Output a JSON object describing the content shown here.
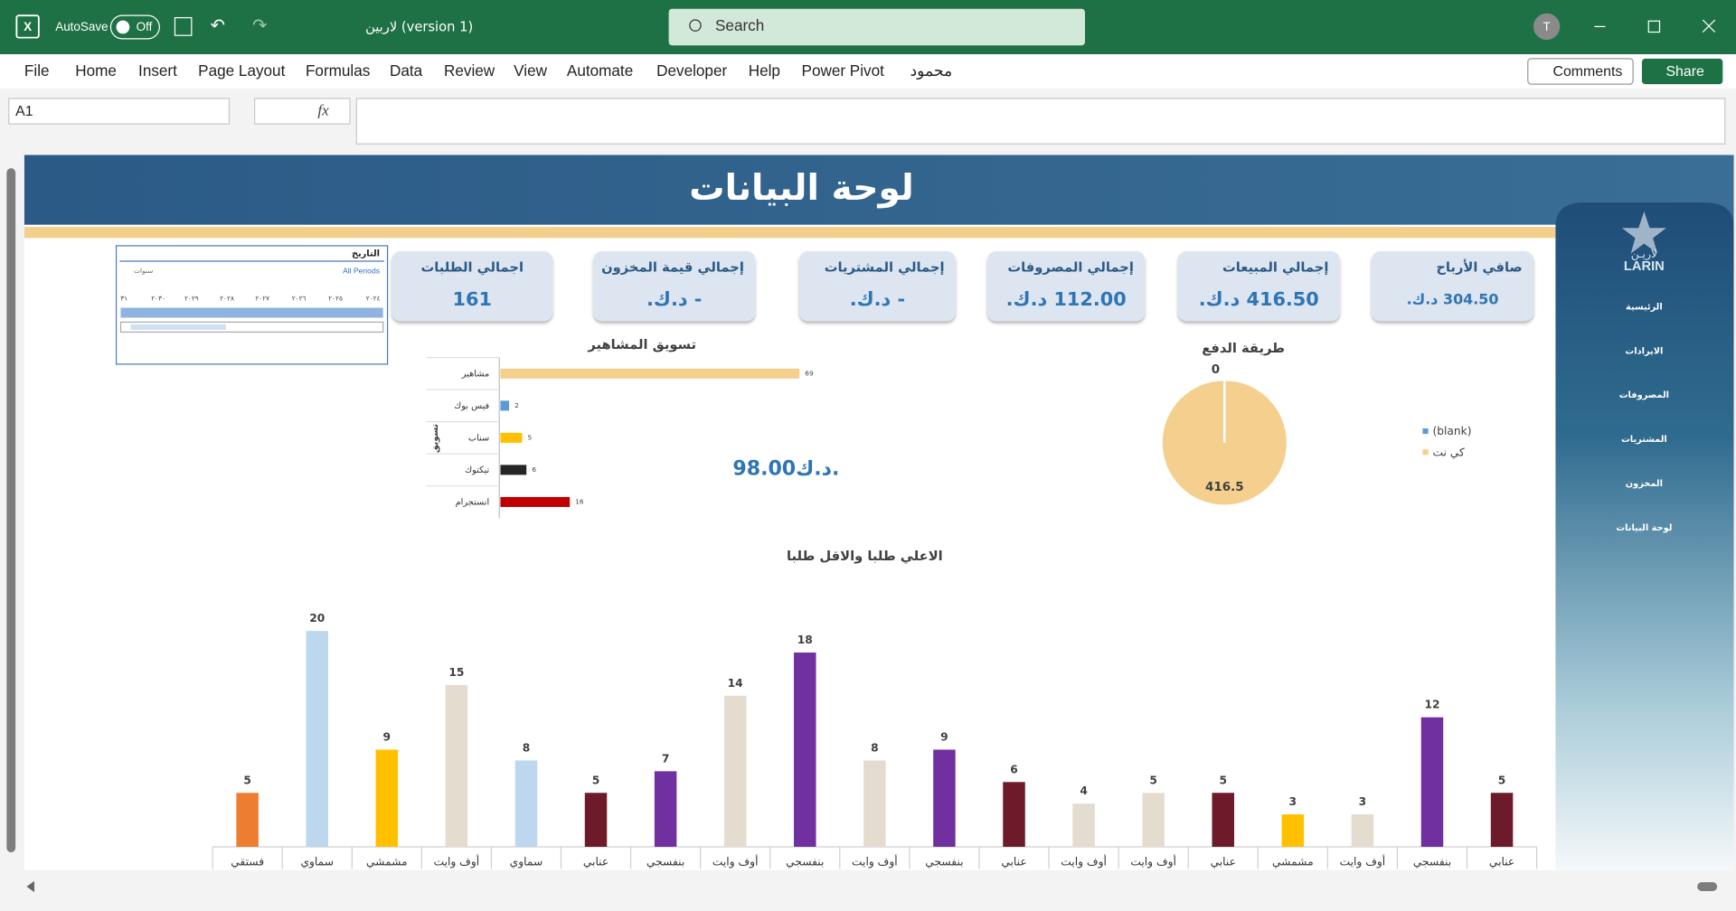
{
  "title_bar": {
    "autosave": "AutoSave",
    "toggle": "Off",
    "file_name": "لاربين (version 1)",
    "search": "Search",
    "avatar": "T"
  },
  "menu": {
    "items": [
      "File",
      "Home",
      "Insert",
      "Page Layout",
      "Formulas",
      "Data",
      "Review",
      "View",
      "Automate",
      "Developer",
      "Help",
      "Power Pivot",
      "محمود"
    ],
    "comments": "Comments",
    "share": "Share"
  },
  "formula_bar": {
    "name_box": "A1",
    "fx": "fx"
  },
  "dashboard": {
    "title": "لوحة البيانات",
    "cards": [
      {
        "label": "صافي الأرباح",
        "value": "304.50 د.ك."
      },
      {
        "label": "إجمالي المبيعات",
        "value": "416.50 د.ك."
      },
      {
        "label": "إجمالي المصروفات",
        "value": "112.00 د.ك."
      },
      {
        "label": "إجمالي المشتريات",
        "value": "- د.ك."
      },
      {
        "label": "إجمالي قيمة المخزون",
        "value": "- د.ك."
      },
      {
        "label": "اجمالي الطلبات",
        "value": "161"
      }
    ],
    "slicer": {
      "title": "التاريخ",
      "periods": "All Periods",
      "level": "سنوات",
      "years": [
        "٢٠٢٤",
        "٢٠٢٥",
        "٢٠٢٦",
        "٢٠٢٧",
        "٢٠٢٨",
        "٢٠٢٩",
        "٢٠٣٠",
        "٣١"
      ]
    },
    "big_value": "98.00د.ك.",
    "sidebar": {
      "logo_ar": "لاريـن",
      "logo_en": "LARIN",
      "nav": [
        "الرئيسية",
        "الايرادات",
        "المصروفات",
        "المشتريات",
        "المخزون",
        "لوحة البيانات"
      ]
    }
  },
  "chart_data": [
    {
      "type": "bar",
      "horizontal": true,
      "title": "تسويق المشاهير",
      "y_label": "تسويق",
      "categories": [
        "مشاهير",
        "فيس بوك",
        "سناب",
        "تيكتوك",
        "انستجرام"
      ],
      "values": [
        69,
        2,
        5,
        6,
        16
      ],
      "colors": [
        "#f5cf8e",
        "#5b9bd5",
        "#ffc000",
        "#262626",
        "#c00000"
      ],
      "xlim": [
        0,
        70
      ]
    },
    {
      "type": "pie",
      "title": "طريقة الدفع",
      "categories": [
        "(blank)",
        "كي نت"
      ],
      "values": [
        0,
        416.5
      ],
      "colors": [
        "#5b9bd5",
        "#f5cf8e"
      ],
      "legend": "right"
    },
    {
      "type": "bar",
      "horizontal": false,
      "title": "الاعلي طلبا والاقل طلبا",
      "categories": [
        "فستقي",
        "سماوي",
        "مشمشي",
        "أوف وايت",
        "سماوي",
        "عنابي",
        "بنفسجي",
        "أوف وايت",
        "بنفسجي",
        "أوف وايت",
        "بنفسجي",
        "عنابي",
        "أوف وايت",
        "أوف وايت",
        "عنابي",
        "مشمشي",
        "أوف وايت",
        "بنفسجي",
        "عنابي"
      ],
      "values": [
        5,
        20,
        9,
        15,
        8,
        5,
        7,
        14,
        18,
        8,
        9,
        6,
        4,
        5,
        5,
        3,
        3,
        12,
        5
      ],
      "colors": [
        "#ed7d31",
        "#bdd7ee",
        "#ffc000",
        "#e4dccf",
        "#bdd7ee",
        "#6d1a2a",
        "#7030a0",
        "#e4dccf",
        "#7030a0",
        "#e4dccf",
        "#7030a0",
        "#6d1a2a",
        "#e4dccf",
        "#e4dccf",
        "#6d1a2a",
        "#ffc000",
        "#e4dccf",
        "#7030a0",
        "#6d1a2a"
      ],
      "ylim": [
        0,
        20
      ]
    }
  ]
}
